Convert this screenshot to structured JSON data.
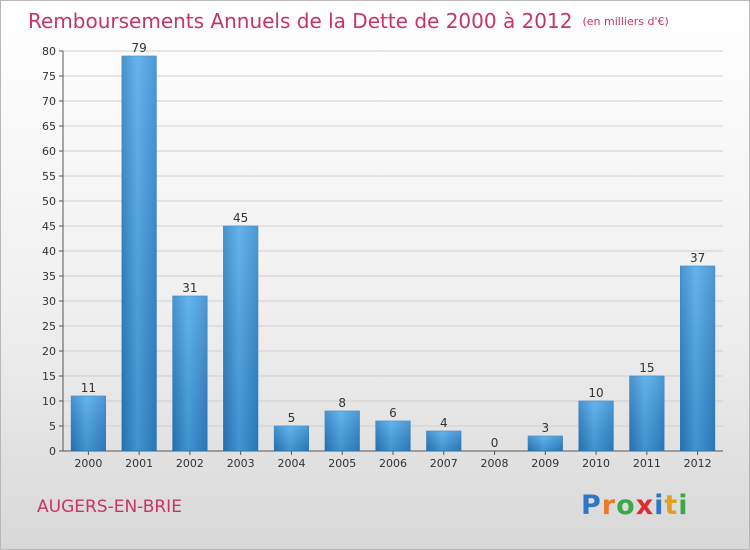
{
  "chart_data": {
    "type": "bar",
    "title": "Remboursements Annuels de la Dette de 2000 à 2012",
    "unit_note": "(en milliers d'€)",
    "categories": [
      "2000",
      "2001",
      "2002",
      "2003",
      "2004",
      "2005",
      "2006",
      "2007",
      "2008",
      "2009",
      "2010",
      "2011",
      "2012"
    ],
    "values": [
      11,
      79,
      31,
      45,
      5,
      8,
      6,
      4,
      0,
      3,
      10,
      15,
      37
    ],
    "ylim": [
      0,
      80
    ],
    "yticks": [
      0,
      5,
      10,
      15,
      20,
      25,
      30,
      35,
      40,
      45,
      50,
      55,
      60,
      65,
      70,
      75,
      80
    ],
    "grid": true,
    "bar_color": "#3f9ce0",
    "title_color": "#c8336a"
  },
  "footer": {
    "city": "AUGERS-EN-BRIE"
  },
  "logo": {
    "letters": [
      "P",
      "r",
      "o",
      "x",
      "i",
      "t",
      "i"
    ]
  }
}
